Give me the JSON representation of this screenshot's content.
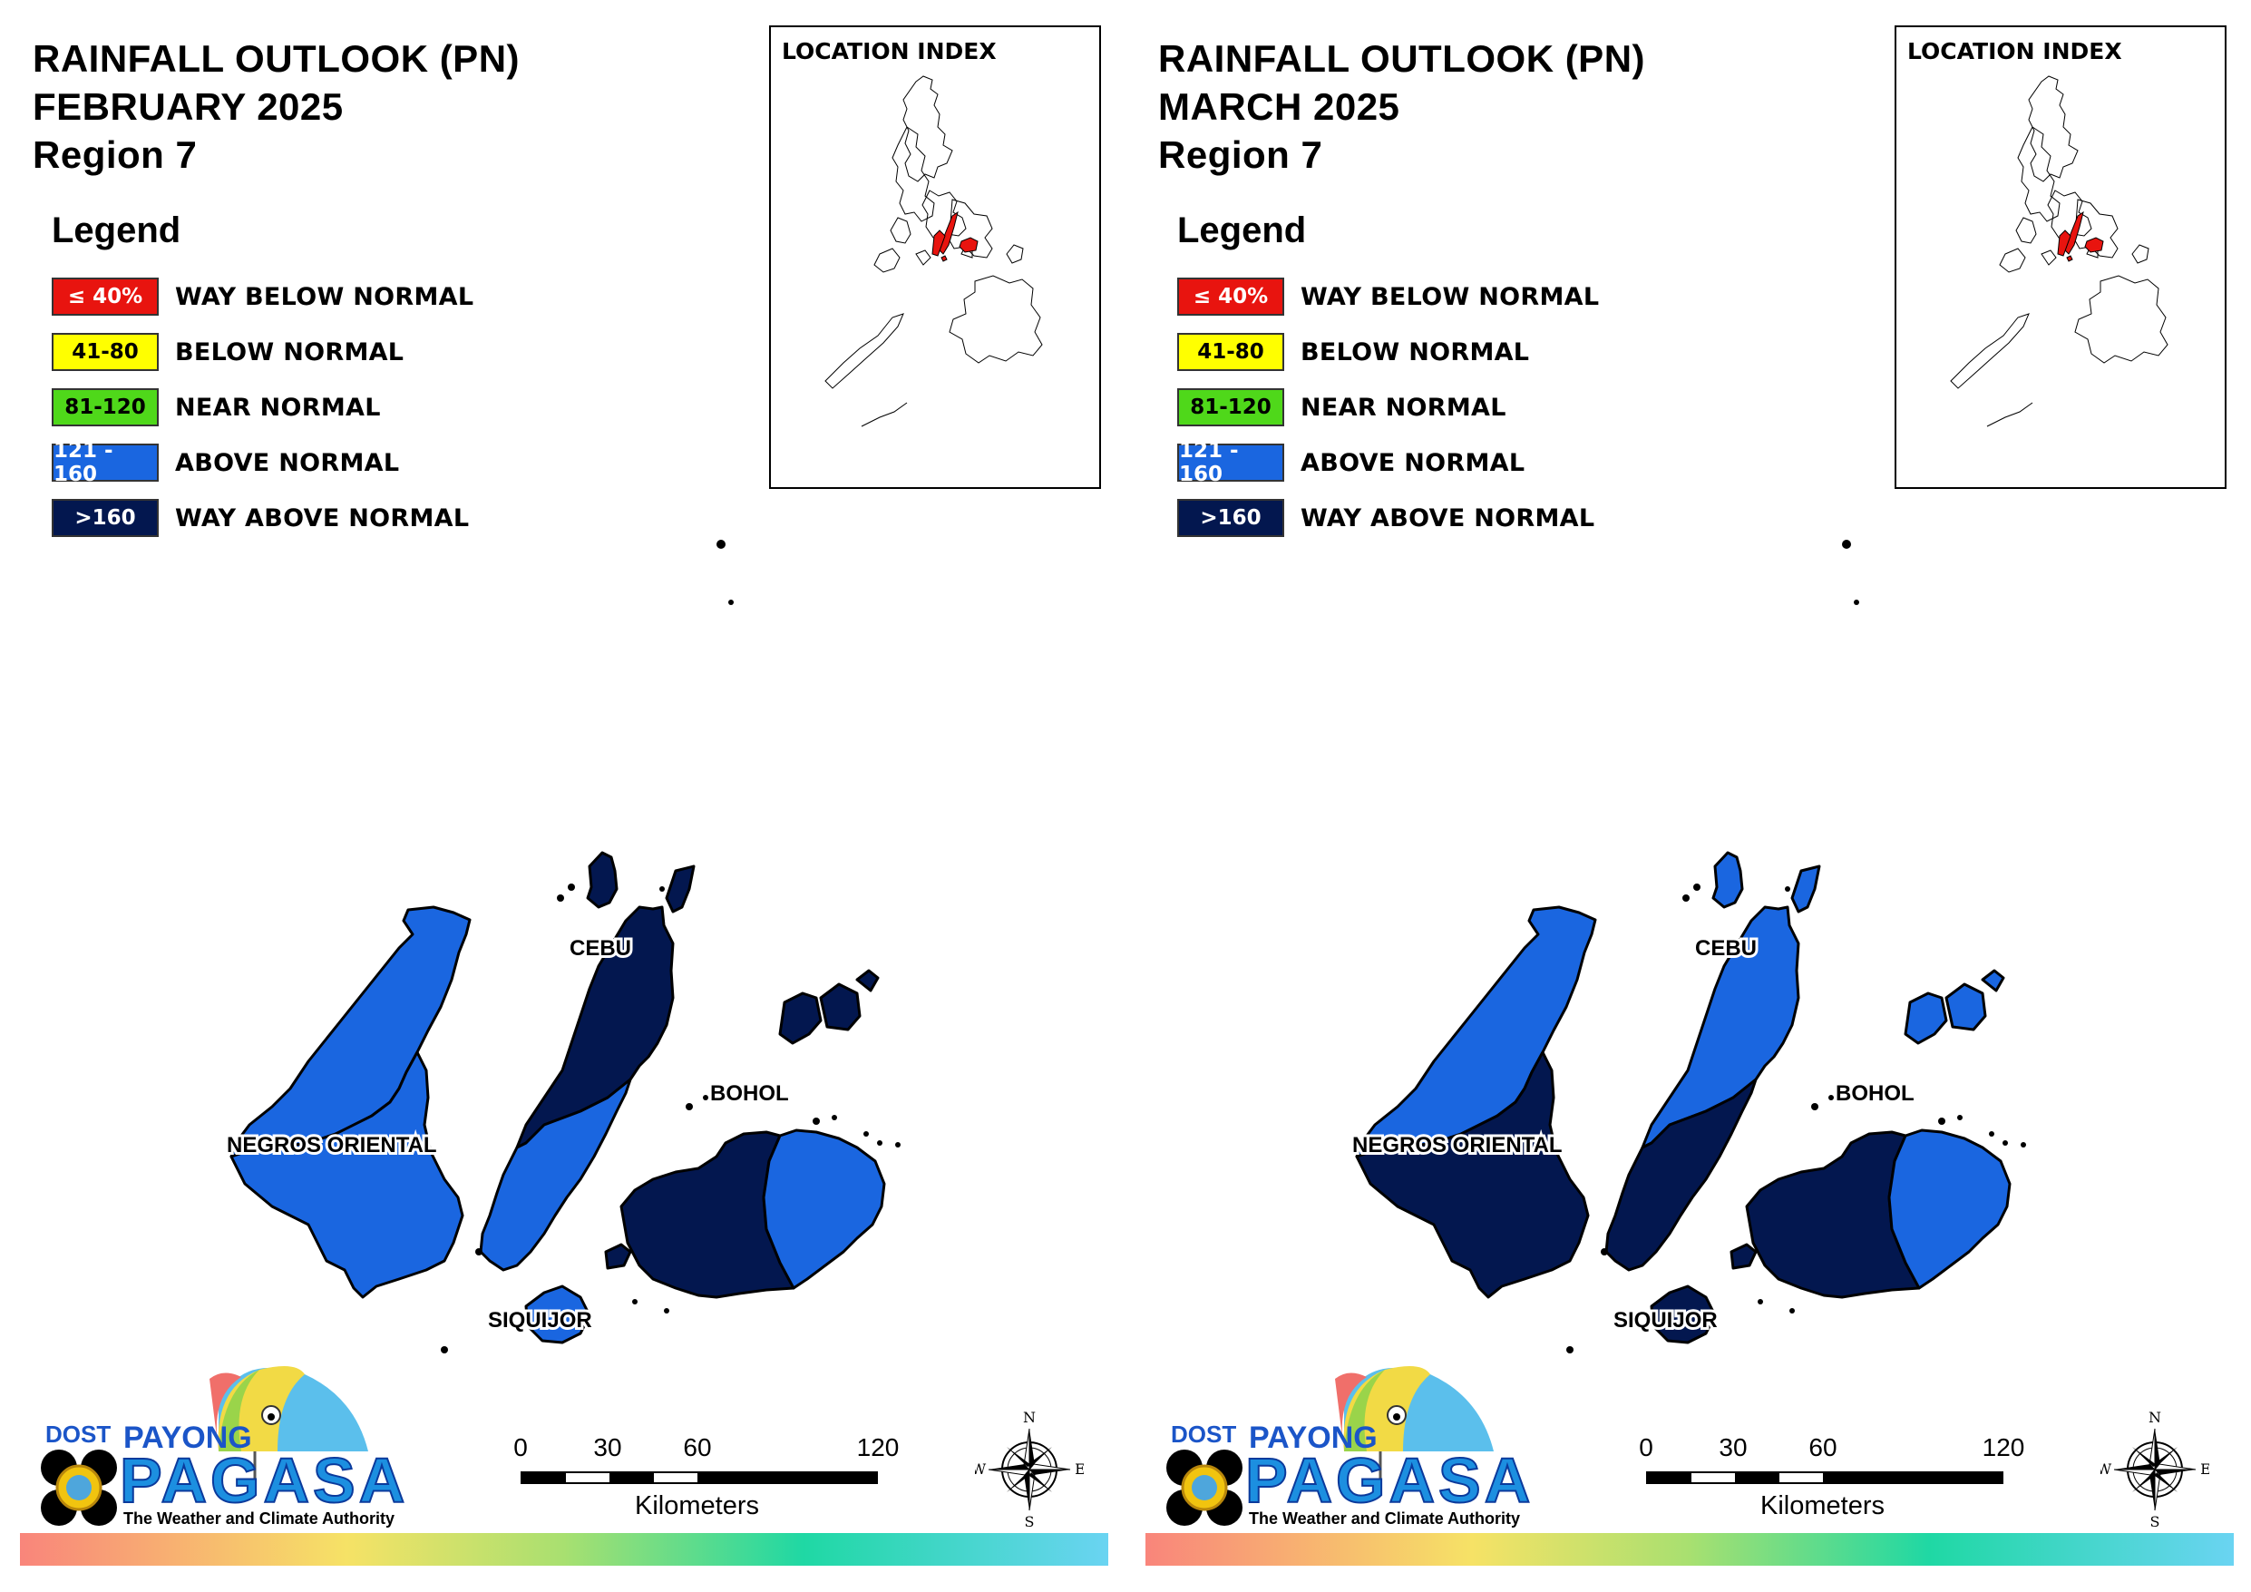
{
  "panels": [
    {
      "title_line1": "RAINFALL OUTLOOK (PN)",
      "title_line2": "FEBRUARY 2025",
      "title_line3": "Region 7",
      "provinces": {
        "negros_oriental": {
          "label": "NEGROS ORIENTAL",
          "category": "ABOVE NORMAL"
        },
        "cebu": {
          "label": "CEBU",
          "category": "WAY ABOVE NORMAL (north) / ABOVE NORMAL (south)"
        },
        "bohol": {
          "label": "BOHOL",
          "category": "WAY ABOVE NORMAL (west) / ABOVE NORMAL (east)"
        },
        "siquijor": {
          "label": "SIQUIJOR",
          "category": "ABOVE NORMAL"
        }
      },
      "colors": {
        "negros_main": "#1a66e0",
        "negros_south": "#1a66e0",
        "cebu_north": "#03174f",
        "cebu_south": "#1a66e0",
        "bohol_west": "#03174f",
        "bohol_east": "#1a66e0",
        "siquijor": "#1a66e0",
        "islands_north": "#03174f"
      }
    },
    {
      "title_line1": "RAINFALL OUTLOOK (PN)",
      "title_line2": "MARCH 2025",
      "title_line3": "Region 7",
      "provinces": {
        "negros_oriental": {
          "label": "NEGROS ORIENTAL",
          "category": "ABOVE NORMAL (north) / WAY ABOVE NORMAL (south)"
        },
        "cebu": {
          "label": "CEBU",
          "category": "ABOVE NORMAL (north) / WAY ABOVE NORMAL (south)"
        },
        "bohol": {
          "label": "BOHOL",
          "category": "WAY ABOVE NORMAL (west) / ABOVE NORMAL (east)"
        },
        "siquijor": {
          "label": "SIQUIJOR",
          "category": "WAY ABOVE NORMAL"
        }
      },
      "colors": {
        "negros_main": "#1a66e0",
        "negros_south": "#03174f",
        "cebu_north": "#1a66e0",
        "cebu_south": "#03174f",
        "bohol_west": "#03174f",
        "bohol_east": "#1a66e0",
        "siquijor": "#03174f",
        "islands_north": "#1a66e0"
      }
    }
  ],
  "legend": {
    "title": "Legend",
    "items": [
      {
        "range": "≤ 40%",
        "label": "WAY BELOW NORMAL",
        "color": "#e8140f",
        "text_color": "#ffffff"
      },
      {
        "range": "41-80",
        "label": "BELOW NORMAL",
        "color": "#ffff00",
        "text_color": "#000000"
      },
      {
        "range": "81-120",
        "label": "NEAR NORMAL",
        "color": "#4fd81a",
        "text_color": "#000000"
      },
      {
        "range": "121 - 160",
        "label": "ABOVE NORMAL",
        "color": "#1a66e0",
        "text_color": "#ffffff"
      },
      {
        "range": ">160",
        "label": "WAY ABOVE NORMAL",
        "color": "#03174f",
        "text_color": "#ffffff"
      }
    ]
  },
  "location_index": {
    "title": "LOCATION INDEX",
    "highlight_color": "#e8140f"
  },
  "scale_bar": {
    "ticks": [
      "0",
      "30",
      "60",
      "120"
    ],
    "units": "Kilometers"
  },
  "compass": {
    "n": "N",
    "s": "S",
    "e": "E",
    "w": "W"
  },
  "logo": {
    "dost": "DOST",
    "payong": "PAYONG",
    "pagasa": "PAGASA",
    "tagline": "The Weather and Climate Authority"
  },
  "icons": [
    "compass-rose-icon",
    "umbrella-logo-icon",
    "dost-seal-icon"
  ]
}
